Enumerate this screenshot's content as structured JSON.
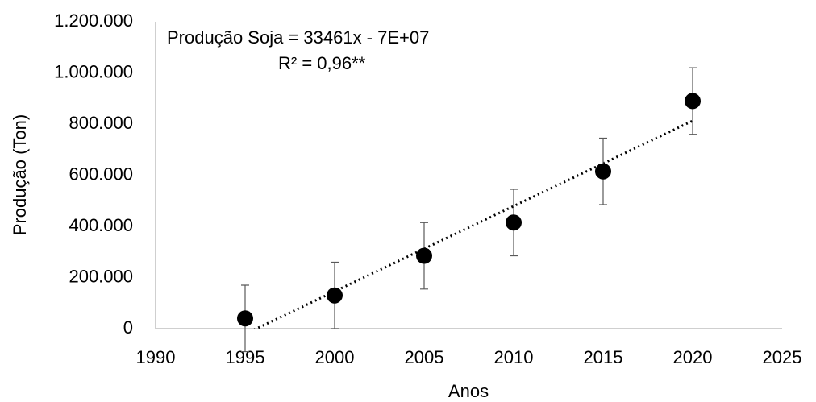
{
  "chart_data": {
    "type": "scatter",
    "equation": "Produção Soja = 33461x - 7E+07",
    "r_squared_label": "R² = 0,96**",
    "x_label": "Anos",
    "y_label": "Produção (Ton)",
    "x": [
      1995,
      2000,
      2005,
      2010,
      2015,
      2020
    ],
    "values": [
      40000,
      130000,
      285000,
      415000,
      615000,
      890000
    ],
    "errors": [
      130000,
      130000,
      130000,
      130000,
      130000,
      130000
    ],
    "color": "#000000",
    "trendline": true,
    "xlim": [
      1990,
      2025
    ],
    "xticks": [
      1990,
      1995,
      2000,
      2005,
      2010,
      2015,
      2020,
      2025
    ],
    "ylim": [
      0,
      1200000
    ],
    "yticks": [
      0,
      {
        "value": 200000,
        "label": "200.000"
      },
      {
        "value": 400000,
        "label": "400.000"
      },
      {
        "value": 600000,
        "label": "600.000"
      },
      {
        "value": 800000,
        "label": "800.000"
      },
      {
        "value": 1000000,
        "label": "1.000.000"
      },
      {
        "value": 1200000,
        "label": "1.200.000"
      }
    ],
    "grid": false
  }
}
